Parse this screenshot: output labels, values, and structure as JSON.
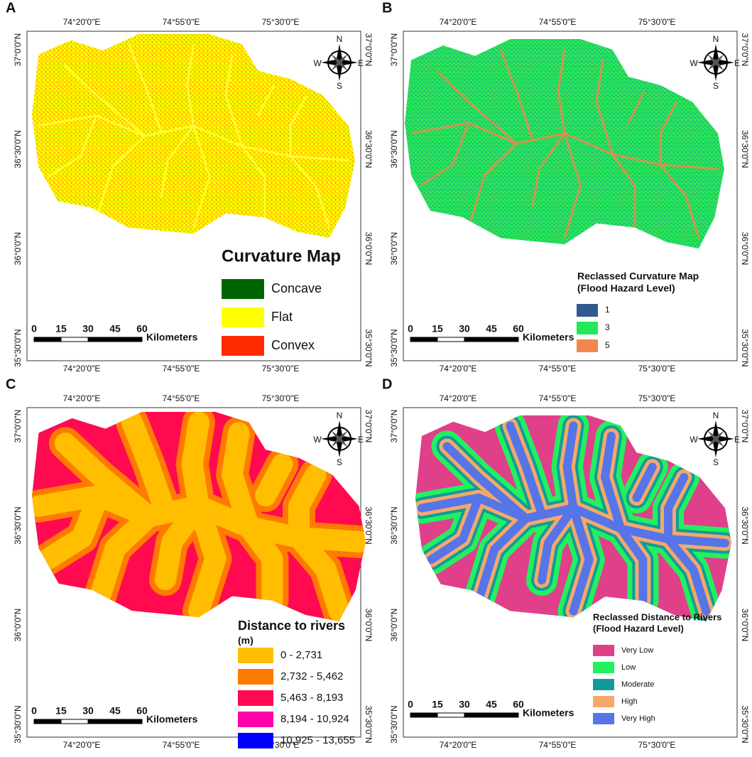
{
  "x_labels": [
    "74°20'0\"E",
    "74°55'0\"E",
    "75°30'0\"E"
  ],
  "y_labels": [
    "37°0'0\"N",
    "36°30'0\"N",
    "36°0'0\"N",
    "35°30'0\"N"
  ],
  "compass": {
    "north": "N",
    "south": "S",
    "east": "E",
    "west": "W"
  },
  "scale_bar": {
    "ticks": [
      "0",
      "15",
      "30",
      "45",
      "60"
    ],
    "unit": "Kilometers"
  },
  "panels": [
    {
      "letter": "A",
      "legend": {
        "title": [
          "Curvature Map"
        ],
        "items": [
          {
            "label": "Concave",
            "color": "#006400"
          },
          {
            "label": "Flat",
            "color": "#ffff00"
          },
          {
            "label": "Convex",
            "color": "#ff2a00"
          }
        ]
      }
    },
    {
      "letter": "B",
      "legend": {
        "title": [
          "Reclassed Curvature Map",
          "(Flood Hazard Level)"
        ],
        "items": [
          {
            "label": "1",
            "color": "#315a8e"
          },
          {
            "label": "3",
            "color": "#22e85a"
          },
          {
            "label": "5",
            "color": "#f0874f"
          }
        ]
      }
    },
    {
      "letter": "C",
      "legend": {
        "title": [
          "Distance to rivers",
          "(m)"
        ],
        "items": [
          {
            "label": "0 - 2,731",
            "color": "#ffbf00"
          },
          {
            "label": "2,732 - 5,462",
            "color": "#ff7a00"
          },
          {
            "label": "5,463 - 8,193",
            "color": "#ff0a50"
          },
          {
            "label": "8,194 - 10,924",
            "color": "#ff00aa"
          },
          {
            "label": "10,925 - 13,655",
            "color": "#0000ff"
          }
        ]
      }
    },
    {
      "letter": "D",
      "legend": {
        "title": [
          "Reclassed Distance to Rivers",
          "(Flood Hazard Level)"
        ],
        "items": [
          {
            "label": "Very Low",
            "color": "#e0408a"
          },
          {
            "label": "Low",
            "color": "#22f060"
          },
          {
            "label": "Moderate",
            "color": "#129a9a"
          },
          {
            "label": "High",
            "color": "#f5a86a"
          },
          {
            "label": "Very High",
            "color": "#5575e8"
          }
        ]
      }
    }
  ]
}
